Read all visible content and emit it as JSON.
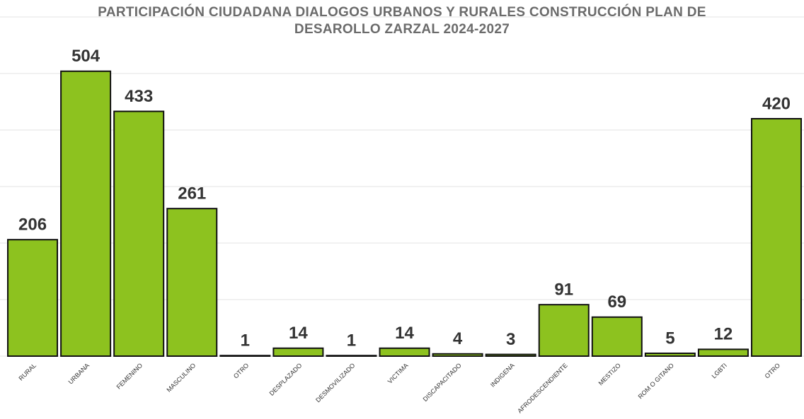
{
  "chart_data": {
    "type": "bar",
    "title": "PARTICIPACIÓN CIUDADANA DIALOGOS URBANOS Y RURALES CONSTRUCCIÓN PLAN DE DESAROLLO ZARZAL 2024-2027",
    "categories": [
      "RURAL",
      "URBANA",
      "FEMENINO",
      "MASCULINO",
      "OTRO",
      "DESPLAZADO",
      "DESMOVILIZADO",
      "VICTIMA",
      "DISCAPACITADO",
      "INDIGENA",
      "AFRODESCENDIENTE",
      "MESTIZO",
      "ROM O GITANO",
      "LGBTI",
      "OTRO"
    ],
    "values": [
      206,
      504,
      433,
      261,
      1,
      14,
      1,
      14,
      4,
      3,
      91,
      69,
      5,
      12,
      420
    ],
    "color": "#8dc21f",
    "ylim": [
      0,
      600
    ],
    "yticks": [
      0,
      100,
      200,
      300,
      400,
      500,
      600
    ],
    "grid": true
  }
}
